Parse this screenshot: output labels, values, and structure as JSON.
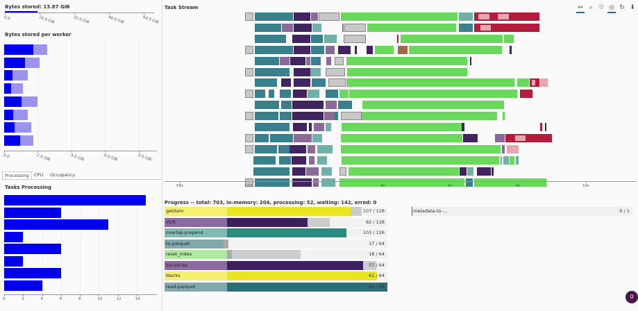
{
  "bytes_stored": {
    "title": "Bytes stored: 13.87 GiB",
    "fraction": 0.217,
    "ticks": [
      "0.0",
      "16.0 GiB",
      "32.0 GiB",
      "48.0 GiB",
      "64.0 GiB"
    ]
  },
  "bytes_per_worker": {
    "title": "Bytes stored per worker",
    "ticks": [
      "0.0",
      "2.0 GiB",
      "4.0 GiB",
      "6.0 GiB",
      "8.0 GiB"
    ],
    "workers": [
      {
        "stored": 1.75,
        "total": 2.55
      },
      {
        "stored": 1.25,
        "total": 2.1
      },
      {
        "stored": 0.5,
        "total": 1.4
      },
      {
        "stored": 0.4,
        "total": 1.1
      },
      {
        "stored": 1.05,
        "total": 2.0
      },
      {
        "stored": 0.55,
        "total": 1.4
      },
      {
        "stored": 0.6,
        "total": 1.6
      },
      {
        "stored": 0.95,
        "total": 1.75
      }
    ]
  },
  "tabs": [
    {
      "label": "Processing",
      "active": true
    },
    {
      "label": "CPU",
      "active": false
    },
    {
      "label": "Occupancy",
      "active": false
    }
  ],
  "tasks_processing": {
    "title": "Tasks Processing",
    "values": [
      15,
      6,
      11,
      2,
      6,
      2,
      6,
      4
    ],
    "xmax": 16,
    "ticks": [
      "0",
      "2",
      "4",
      "6",
      "8",
      "10",
      "12",
      "14"
    ]
  },
  "task_stream": {
    "title": "Task Stream",
    "ticks": [
      "58s",
      "1/01",
      "2s",
      "4s",
      "6s",
      "8s",
      "10s"
    ],
    "tools": [
      {
        "icon": "pan-icon",
        "glyph": "↔",
        "active": true
      },
      {
        "icon": "box-zoom-icon",
        "glyph": "⌕",
        "active": false
      },
      {
        "icon": "wheel-zoom-icon",
        "glyph": "☉",
        "active": false
      },
      {
        "icon": "hover-icon",
        "glyph": "◎",
        "active": true
      },
      {
        "icon": "reset-icon",
        "glyph": "↻",
        "active": false
      },
      {
        "icon": "save-icon",
        "glyph": "⬇",
        "active": false
      }
    ]
  },
  "progress": {
    "title": "Progress -- total: 703, in-memory: 204, processing: 52, waiting: 142, erred: 0",
    "rows": [
      {
        "label": "getitem",
        "count": "107 / 128",
        "color": "#e8e620",
        "light": "#f5f06e",
        "done": 0.836,
        "proc": 0.0,
        "wait": 0.05
      },
      {
        "label": "shift",
        "count": "82 / 128",
        "color": "#3b1f5e",
        "light": "#8c6ba0",
        "done": 0.641,
        "proc": 0.0,
        "wait": 0.1
      },
      {
        "label": "overlap-prepend",
        "count": "103 / 126",
        "color": "#2a8c80",
        "light": "#7cbcb4",
        "done": 0.817,
        "proc": 0.0,
        "wait": 0.0
      },
      {
        "label": "to-parquet",
        "count": "17 / 64",
        "color": "#2b6f78",
        "light": "#7fa9ae",
        "done": 0.266,
        "proc": 0.02,
        "wait": 0.0
      },
      {
        "label": "reset_index",
        "count": "18 / 64",
        "color": "#7bd96a",
        "light": "#b0e8a4",
        "done": 0.281,
        "proc": 0.02,
        "wait": 0.31
      },
      {
        "label": "list-series",
        "count": "57 / 64",
        "color": "#3b1f5e",
        "light": "#8c6ba0",
        "done": 0.891,
        "proc": 0.0,
        "wait": 0.06
      },
      {
        "label": "blocks",
        "count": "61 / 64",
        "color": "#e8e620",
        "light": "#f5f06e",
        "done": 0.953,
        "proc": 0.0,
        "wait": 0.0
      },
      {
        "label": "read-parquet",
        "count": "64 / 64",
        "color": "#2b6f78",
        "light": "#7fa9ae",
        "done": 1.0,
        "proc": 0.0,
        "wait": 0.0
      }
    ],
    "extra": {
      "label": "metadata-to-...",
      "count": "0 / 1"
    }
  },
  "avatar": {
    "label": "0"
  },
  "colors": {
    "blue": "#0000ee",
    "purple_light": "#9b93ee"
  }
}
